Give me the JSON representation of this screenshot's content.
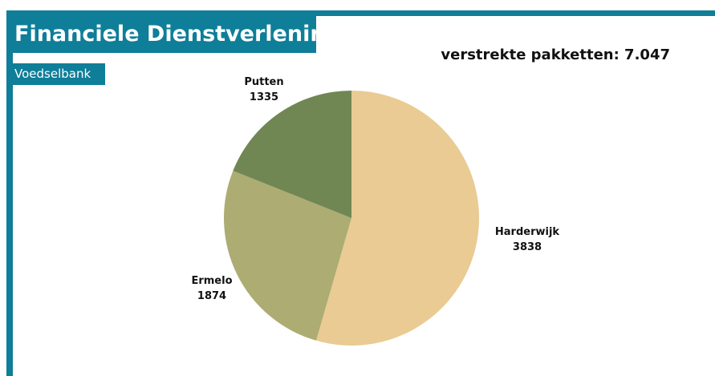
{
  "header": {
    "title": "Financiele Dienstverlening",
    "subtitle": "Voedselbank",
    "stat": "verstrekte pakketten: 7.047"
  },
  "colors": {
    "accent": "#0e7e99"
  },
  "chart_data": {
    "type": "pie",
    "title": "",
    "slices": [
      {
        "label": "Harderwijk",
        "value": 3838,
        "value_label": "3838",
        "color": "#e9cb93"
      },
      {
        "label": "Ermelo",
        "value": 1874,
        "value_label": "1874",
        "color": "#adac72"
      },
      {
        "label": "Putten",
        "value": 1335,
        "value_label": "1335",
        "color": "#718753"
      }
    ]
  }
}
